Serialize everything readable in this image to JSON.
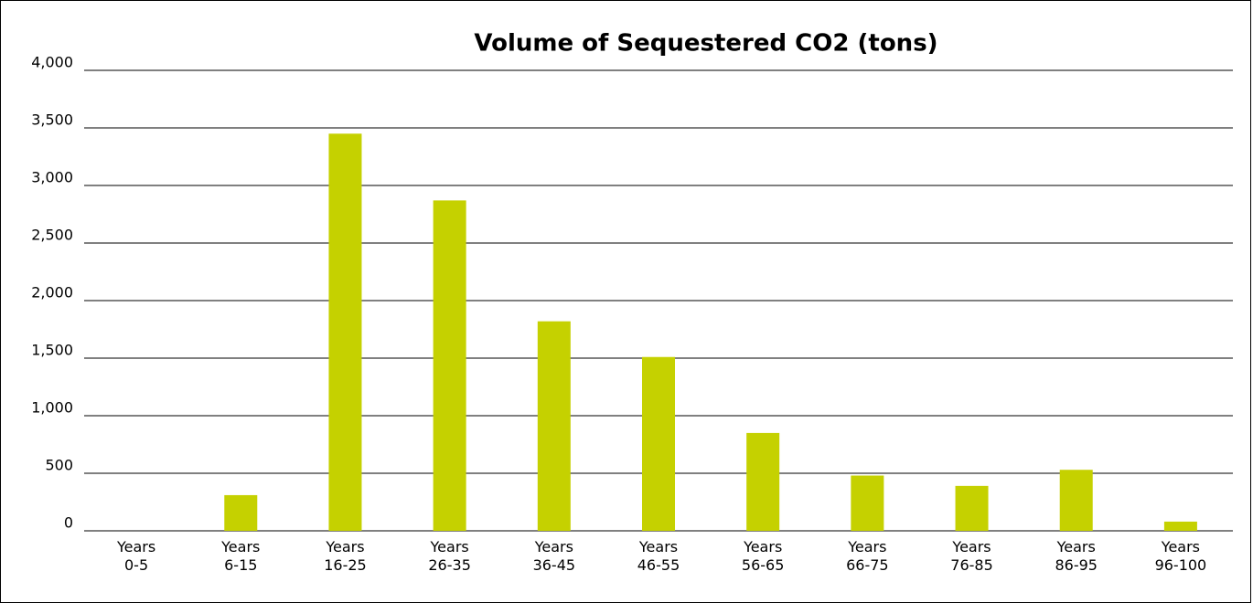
{
  "chart_data": {
    "type": "bar",
    "title": "Volume of Sequestered CO2 (tons)",
    "categories": [
      "Years\n0-5",
      "Years\n6-15",
      "Years\n16-25",
      "Years\n26-35",
      "Years\n36-45",
      "Years\n46-55",
      "Years\n56-65",
      "Years\n66-75",
      "Years\n76-85",
      "Years\n86-95",
      "Years\n96-100"
    ],
    "values": [
      0,
      310,
      3450,
      2870,
      1820,
      1510,
      850,
      480,
      390,
      530,
      80
    ],
    "color": "#c5d100",
    "ylim": [
      0,
      4000
    ],
    "yticks": [
      0,
      500,
      {
        "value": 1000,
        "label": "1,000"
      },
      {
        "value": 1500,
        "label": "1,500"
      },
      {
        "value": 2000,
        "label": "2,000"
      },
      {
        "value": 2500,
        "label": "2,500"
      },
      {
        "value": 3000,
        "label": "3,000"
      },
      {
        "value": 3500,
        "label": "3,500"
      },
      {
        "value": 4000,
        "label": "4,000"
      }
    ],
    "grid": true
  }
}
